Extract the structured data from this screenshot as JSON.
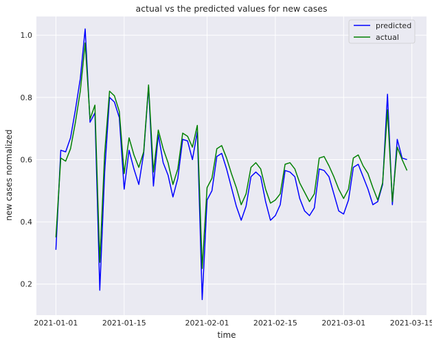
{
  "chart_data": {
    "type": "line",
    "title": "actual vs the predicted values for new cases",
    "xlabel": "time",
    "ylabel": "new cases normalized",
    "x_start_date": "2021-01-01",
    "xlim": [
      "2020-12-28",
      "2021-03-18"
    ],
    "ylim": [
      0.1,
      1.06
    ],
    "x_ticks": [
      "2021-01-01",
      "2021-01-15",
      "2021-02-01",
      "2021-02-15",
      "2021-03-01",
      "2021-03-15"
    ],
    "y_ticks": [
      0.2,
      0.4,
      0.6,
      0.8,
      1.0
    ],
    "y_tick_labels": [
      "0.2",
      "0.4",
      "0.6",
      "0.8",
      "1.0"
    ],
    "grid": true,
    "legend_position": "top-right",
    "series": [
      {
        "name": "predicted",
        "color": "#0000ff",
        "values": [
          0.31,
          0.63,
          0.625,
          0.67,
          0.76,
          0.86,
          1.02,
          0.72,
          0.75,
          0.18,
          0.56,
          0.8,
          0.785,
          0.735,
          0.505,
          0.63,
          0.57,
          0.52,
          0.62,
          0.835,
          0.515,
          0.68,
          0.59,
          0.55,
          0.48,
          0.54,
          0.665,
          0.66,
          0.6,
          0.69,
          0.15,
          0.47,
          0.5,
          0.61,
          0.62,
          0.57,
          0.51,
          0.45,
          0.405,
          0.45,
          0.545,
          0.56,
          0.545,
          0.465,
          0.405,
          0.42,
          0.455,
          0.565,
          0.56,
          0.545,
          0.475,
          0.435,
          0.42,
          0.445,
          0.57,
          0.565,
          0.545,
          0.49,
          0.435,
          0.425,
          0.47,
          0.575,
          0.585,
          0.545,
          0.505,
          0.455,
          0.465,
          0.52,
          0.81,
          0.455,
          0.665,
          0.605,
          0.6
        ]
      },
      {
        "name": "actual",
        "color": "#008000",
        "values": [
          0.35,
          0.605,
          0.595,
          0.635,
          0.72,
          0.82,
          0.975,
          0.73,
          0.775,
          0.27,
          0.62,
          0.82,
          0.805,
          0.755,
          0.555,
          0.67,
          0.615,
          0.575,
          0.625,
          0.84,
          0.56,
          0.695,
          0.635,
          0.59,
          0.52,
          0.57,
          0.685,
          0.675,
          0.64,
          0.71,
          0.25,
          0.51,
          0.54,
          0.635,
          0.645,
          0.605,
          0.555,
          0.51,
          0.455,
          0.49,
          0.575,
          0.59,
          0.57,
          0.505,
          0.46,
          0.47,
          0.49,
          0.585,
          0.59,
          0.57,
          0.525,
          0.495,
          0.465,
          0.49,
          0.605,
          0.61,
          0.58,
          0.545,
          0.505,
          0.475,
          0.505,
          0.605,
          0.615,
          0.58,
          0.555,
          0.51,
          0.47,
          0.525,
          0.76,
          0.465,
          0.64,
          0.6,
          0.565
        ]
      }
    ]
  }
}
